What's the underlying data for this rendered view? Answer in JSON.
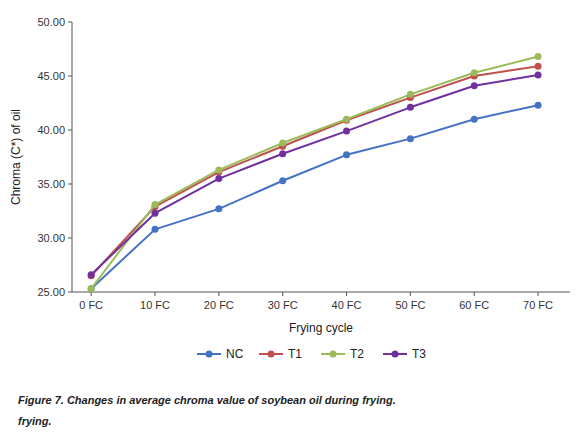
{
  "chart_data": {
    "type": "line",
    "x": [
      0,
      10,
      20,
      30,
      40,
      50,
      60,
      70
    ],
    "series": [
      {
        "name": "NC",
        "color": "#4472C4",
        "values": [
          25.3,
          30.8,
          32.7,
          35.3,
          37.7,
          39.2,
          41.0,
          42.3
        ]
      },
      {
        "name": "T1",
        "color": "#C0504D",
        "values": [
          26.5,
          32.9,
          36.1,
          38.5,
          40.9,
          43.0,
          45.0,
          45.9
        ]
      },
      {
        "name": "T2",
        "color": "#9BBB59",
        "values": [
          25.3,
          33.1,
          36.3,
          38.8,
          41.0,
          43.3,
          45.3,
          46.8
        ]
      },
      {
        "name": "T3",
        "color": "#7030A0",
        "values": [
          26.6,
          32.3,
          35.5,
          37.8,
          39.9,
          42.1,
          44.1,
          45.1
        ]
      }
    ],
    "xlim": [
      -3,
      75
    ],
    "xticks": [
      {
        "value": 0,
        "label": "0 FC"
      },
      {
        "value": 10,
        "label": "10 FC"
      },
      {
        "value": 20,
        "label": "20 FC"
      },
      {
        "value": 30,
        "label": "30 FC"
      },
      {
        "value": 40,
        "label": "40 FC"
      },
      {
        "value": 50,
        "label": "50 FC"
      },
      {
        "value": 60,
        "label": "60 FC"
      },
      {
        "value": 70,
        "label": "70 FC"
      }
    ],
    "ylim": [
      25.0,
      50.0
    ],
    "yticks": [
      {
        "value": 25.0,
        "label": "25.00"
      },
      {
        "value": 30.0,
        "label": "30.00"
      },
      {
        "value": 35.0,
        "label": "35.00"
      },
      {
        "value": 40.0,
        "label": "40.00"
      },
      {
        "value": 45.0,
        "label": "45.00"
      },
      {
        "value": 50.0,
        "label": "50.00"
      }
    ],
    "x_label": "Frying cycle",
    "y_label": "Chroma (C*) of oil",
    "caption": [
      "Figure 7.",
      "Changes in average chroma value of soybean oil during frying.",
      "frying."
    ],
    "marker": "circle",
    "grid": false,
    "legend": "bottom"
  }
}
